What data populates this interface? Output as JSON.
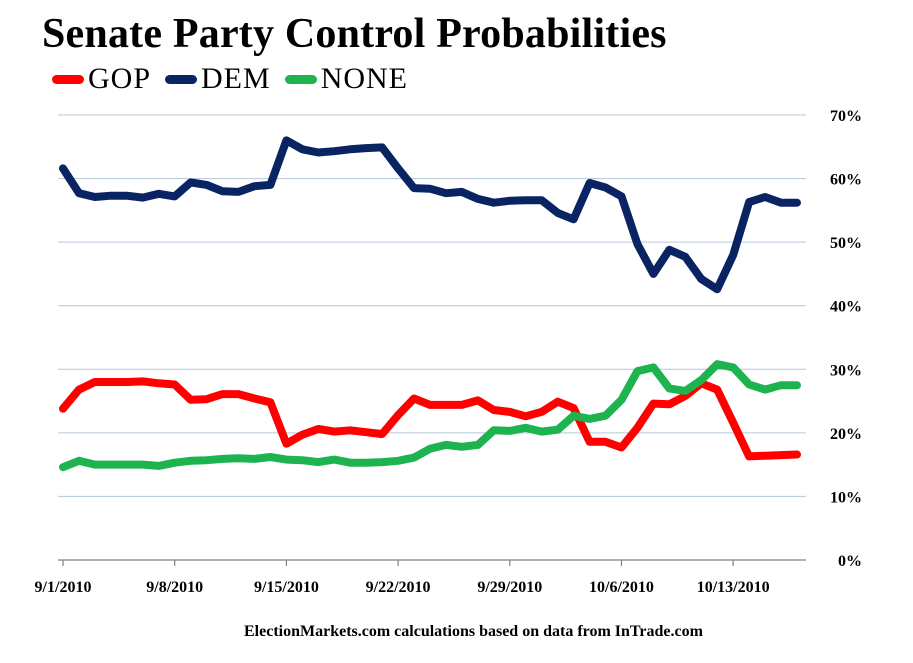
{
  "chart_data": {
    "type": "line",
    "title": "Senate Party Control Probabilities",
    "xlabel": "",
    "ylabel": "",
    "ylim": [
      0,
      70
    ],
    "y_ticks": [
      0,
      10,
      20,
      30,
      40,
      50,
      60,
      70
    ],
    "y_tick_labels": [
      "0%",
      "10%",
      "20%",
      "30%",
      "40%",
      "50%",
      "60%",
      "70%"
    ],
    "x_tick_labels": [
      "9/1/2010",
      "9/8/2010",
      "9/15/2010",
      "9/22/2010",
      "9/29/2010",
      "10/6/2010",
      "10/13/2010"
    ],
    "x_tick_day_index": [
      0,
      7,
      14,
      21,
      28,
      35,
      42
    ],
    "x_range": [
      0,
      46
    ],
    "legend_position": "top-left",
    "grid": "horizontal",
    "source_note": "ElectionMarkets.com calculations based on data from InTrade.com",
    "series": [
      {
        "name": "GOP",
        "color": "#ff0000",
        "x": [
          0,
          1,
          2,
          3,
          4,
          5,
          6,
          7,
          8,
          9,
          10,
          11,
          12,
          13,
          14,
          15,
          16,
          17,
          18,
          19,
          20,
          21,
          22,
          23,
          24,
          25,
          26,
          27,
          28,
          29,
          30,
          31,
          32,
          33,
          34,
          35,
          36,
          37,
          38,
          39,
          40,
          41,
          42,
          43,
          44,
          45,
          46
        ],
        "values": [
          23.8,
          26.8,
          28.0,
          28.0,
          28.0,
          28.1,
          27.8,
          27.6,
          25.2,
          25.3,
          26.1,
          26.1,
          25.4,
          24.8,
          18.3,
          19.7,
          20.6,
          20.2,
          20.4,
          20.1,
          19.8,
          22.8,
          25.4,
          24.4,
          24.4,
          24.4,
          25.1,
          23.6,
          23.3,
          22.6,
          23.3,
          24.9,
          23.9,
          18.6,
          18.6,
          17.7,
          20.8,
          24.6,
          24.5,
          25.8,
          27.8,
          26.8,
          21.6,
          16.3,
          16.4,
          16.5,
          16.6
        ]
      },
      {
        "name": "DEM",
        "color": "#0a2463",
        "x": [
          0,
          1,
          2,
          3,
          4,
          5,
          6,
          7,
          8,
          9,
          10,
          11,
          12,
          13,
          14,
          15,
          16,
          17,
          18,
          19,
          20,
          21,
          22,
          23,
          24,
          25,
          26,
          27,
          28,
          29,
          30,
          31,
          32,
          33,
          34,
          35,
          36,
          37,
          38,
          39,
          40,
          41,
          42,
          43,
          44,
          45,
          46
        ],
        "values": [
          61.6,
          57.7,
          57.1,
          57.3,
          57.3,
          57.0,
          57.6,
          57.2,
          59.4,
          59.0,
          58.0,
          57.9,
          58.8,
          59.0,
          66.0,
          64.6,
          64.1,
          64.3,
          64.6,
          64.8,
          64.9,
          61.6,
          58.5,
          58.4,
          57.7,
          57.9,
          56.8,
          56.2,
          56.5,
          56.6,
          56.6,
          54.6,
          53.6,
          59.3,
          58.6,
          57.2,
          49.7,
          45.0,
          48.8,
          47.7,
          44.2,
          42.6,
          48.0,
          56.3,
          57.1,
          56.2,
          56.2
        ]
      },
      {
        "name": "NONE",
        "color": "#1db34f",
        "x": [
          0,
          1,
          2,
          3,
          4,
          5,
          6,
          7,
          8,
          9,
          10,
          11,
          12,
          13,
          14,
          15,
          16,
          17,
          18,
          19,
          20,
          21,
          22,
          23,
          24,
          25,
          26,
          27,
          28,
          29,
          30,
          31,
          32,
          33,
          34,
          35,
          36,
          37,
          38,
          39,
          40,
          41,
          42,
          43,
          44,
          45,
          46
        ],
        "values": [
          14.6,
          15.6,
          15.0,
          15.0,
          15.0,
          15.0,
          14.8,
          15.3,
          15.6,
          15.7,
          15.9,
          16.0,
          15.9,
          16.2,
          15.8,
          15.7,
          15.4,
          15.8,
          15.3,
          15.3,
          15.4,
          15.6,
          16.1,
          17.5,
          18.1,
          17.8,
          18.1,
          20.4,
          20.3,
          20.8,
          20.2,
          20.5,
          22.7,
          22.2,
          22.7,
          25.2,
          29.7,
          30.3,
          27.0,
          26.6,
          28.3,
          30.8,
          30.3,
          27.6,
          26.8,
          27.5,
          27.5
        ]
      }
    ]
  }
}
